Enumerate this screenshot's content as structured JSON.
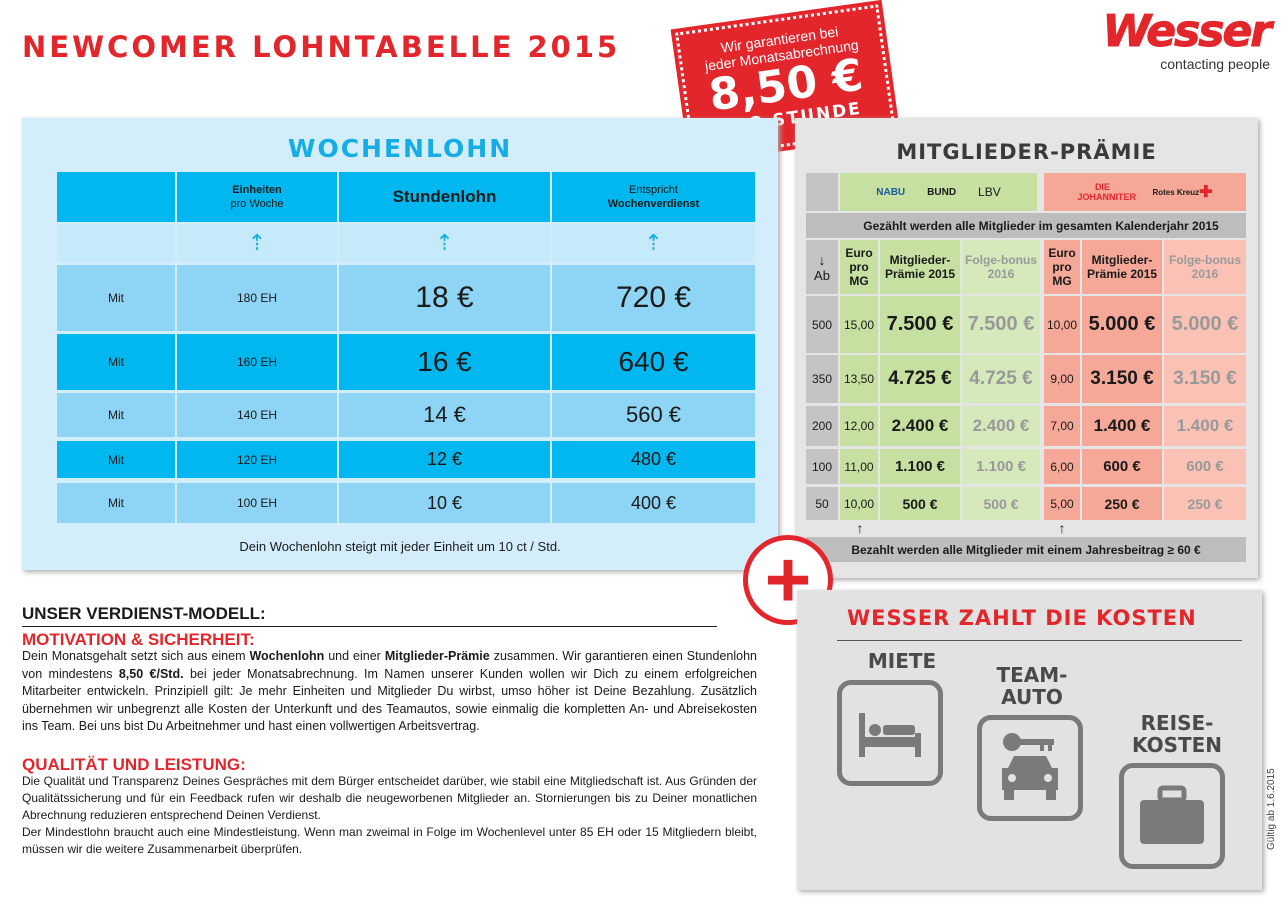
{
  "title": "NEWCOMER LOHNTABELLE 2015",
  "stamp": {
    "line1": "Wir garantieren bei",
    "line2": "jeder Monatsabrechnung",
    "amount": "8,50 €",
    "unit": "PRO STUNDE"
  },
  "logo": {
    "name": "Wesser",
    "tagline": "contacting people"
  },
  "wochenlohn": {
    "title": "WOCHENLOHN",
    "headers": [
      "",
      "Einheiten",
      "pro Woche",
      "Stundenlohn",
      "Entspricht",
      "Wochenverdienst"
    ],
    "rows": [
      {
        "label": "Mit",
        "units": "180 EH",
        "rate": "18 €",
        "weekly": "720 €"
      },
      {
        "label": "Mit",
        "units": "160 EH",
        "rate": "16 €",
        "weekly": "640 €"
      },
      {
        "label": "Mit",
        "units": "140 EH",
        "rate": "14 €",
        "weekly": "560 €"
      },
      {
        "label": "Mit",
        "units": "120 EH",
        "rate": "12 €",
        "weekly": "480 €"
      },
      {
        "label": "Mit",
        "units": "100 EH",
        "rate": "10 €",
        "weekly": "400 €"
      }
    ],
    "footer": "Dein Wochenlohn steigt mit jeder Einheit um 10 ct / Std."
  },
  "praemie": {
    "title": "MITGLIEDER-PRÄMIE",
    "logos_green": [
      "NABU",
      "BUND",
      "LBV"
    ],
    "logos_red": [
      "DIE JOHANNITER",
      "Rotes Kreuz"
    ],
    "banner_top": "Gezählt werden alle Mitglieder im gesamten Kalenderjahr 2015",
    "headers": {
      "ab": "Ab",
      "euro": "Euro pro MG",
      "praemie": "Mitglieder-Prämie 2015",
      "bonus": "Folge-bonus 2016"
    },
    "rows": [
      {
        "ab": "500",
        "g_euro": "15,00",
        "g_praemie": "7.500 €",
        "g_bonus": "7.500 €",
        "r_euro": "10,00",
        "r_praemie": "5.000 €",
        "r_bonus": "5.000 €"
      },
      {
        "ab": "350",
        "g_euro": "13,50",
        "g_praemie": "4.725 €",
        "g_bonus": "4.725 €",
        "r_euro": "9,00",
        "r_praemie": "3.150 €",
        "r_bonus": "3.150 €"
      },
      {
        "ab": "200",
        "g_euro": "12,00",
        "g_praemie": "2.400 €",
        "g_bonus": "2.400 €",
        "r_euro": "7,00",
        "r_praemie": "1.400 €",
        "r_bonus": "1.400 €"
      },
      {
        "ab": "100",
        "g_euro": "11,00",
        "g_praemie": "1.100 €",
        "g_bonus": "1.100 €",
        "r_euro": "6,00",
        "r_praemie": "600 €",
        "r_bonus": "600 €"
      },
      {
        "ab": "50",
        "g_euro": "10,00",
        "g_praemie": "500 €",
        "g_bonus": "500 €",
        "r_euro": "5,00",
        "r_praemie": "250 €",
        "r_bonus": "250 €"
      }
    ],
    "banner_bottom": "Bezahlt werden alle Mitglieder mit einem Jahresbeitrag ≥ 60 €"
  },
  "kosten": {
    "title": "WESSER ZAHLT DIE KOSTEN",
    "items": [
      {
        "label": "MIETE",
        "icon": "bed-icon"
      },
      {
        "label": "TEAM-\nAUTO",
        "icon": "car-key-icon"
      },
      {
        "label": "REISE-\nKOSTEN",
        "icon": "suitcase-icon"
      }
    ]
  },
  "text": {
    "heading": "UNSER VERDIENST-MODELL:",
    "s1_title": "MOTIVATION & SICHERHEIT:",
    "s1_a": "Dein Monatsgehalt setzt sich aus einem ",
    "s1_b": "Wochenlohn",
    "s1_c": " und einer ",
    "s1_d": "Mitglieder-Prämie",
    "s1_e": " zusammen. Wir garantieren einen Stundenlohn von mindestens ",
    "s1_f": "8,50 €/Std.",
    "s1_g": " bei jeder Monatsabrechnung. Im Namen unserer Kunden wollen wir Dich zu einem erfolgreichen Mitarbeiter entwickeln. Prinzipiell gilt: Je mehr Einheiten und Mitglieder Du wirbst, umso höher ist Deine Bezahlung. Zusätzlich übernehmen wir unbegrenzt alle Kosten der Unterkunft und des Teamautos, sowie einmalig die kompletten An- und Abreisekosten ins Team. Bei uns bist Du Arbeitnehmer und hast einen vollwertigen Arbeitsvertrag.",
    "s2_title": "QUALITÄT UND LEISTUNG:",
    "s2_p1": "Die Qualität und Transparenz Deines Gespräches mit dem Bürger entscheidet darüber, wie stabil eine Mitgliedschaft ist. Aus Gründen der Qualitätssicherung und für ein Feedback rufen wir deshalb die neugeworbenen Mitglieder an. Stornierungen bis zu Deiner monatlichen Abrechnung reduzieren entsprechend Deinen Verdienst.",
    "s2_p2": "Der Mindestlohn braucht auch eine Mindestleistung. Wenn man zweimal in Folge im Wochenlevel unter 85 EH oder 15 Mitgliedern bleibt, müssen wir die weitere Zusammenarbeit überprüfen."
  },
  "validity": "Gültig ab 1.6.2015",
  "colors": {
    "red": "#e3262b",
    "blue": "#00b7ef",
    "lightblue": "#d3eefa",
    "green": "#c5e0a0",
    "salmon": "#f5a898"
  }
}
